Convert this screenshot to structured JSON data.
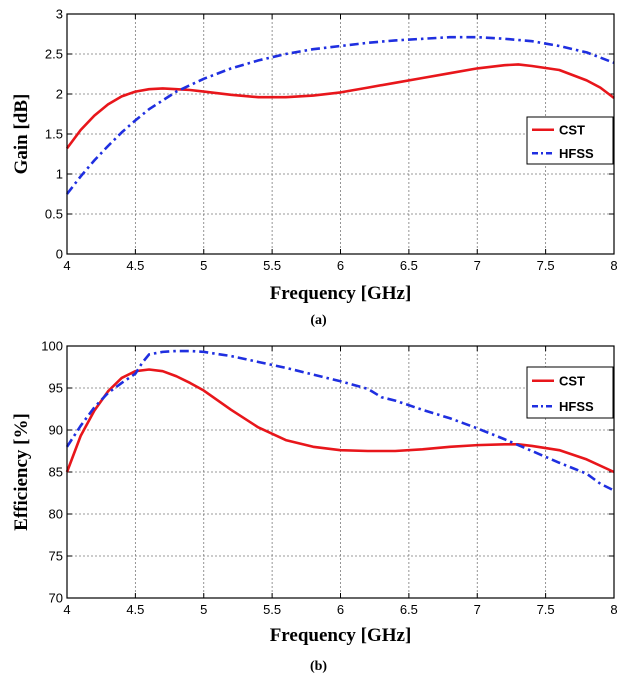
{
  "chart_data": [
    {
      "type": "line",
      "caption": "(a)",
      "xlabel": "Frequency [GHz]",
      "ylabel": "Gain [dB]",
      "xlim": [
        4,
        8
      ],
      "ylim": [
        0,
        3
      ],
      "xticks": [
        "4",
        "4.5",
        "5",
        "5.5",
        "6",
        "6.5",
        "7",
        "7.5",
        "8"
      ],
      "yticks": [
        "0",
        "0.5",
        "1",
        "1.5",
        "2",
        "2.5",
        "3"
      ],
      "grid": true,
      "legend": "right",
      "series": [
        {
          "name": "CST",
          "color": "#e8161b",
          "style": "solid",
          "x": [
            4.0,
            4.1,
            4.2,
            4.3,
            4.4,
            4.5,
            4.6,
            4.7,
            4.8,
            4.9,
            5.0,
            5.2,
            5.4,
            5.6,
            5.8,
            6.0,
            6.2,
            6.4,
            6.6,
            6.8,
            7.0,
            7.2,
            7.3,
            7.4,
            7.6,
            7.8,
            7.9,
            8.0
          ],
          "y": [
            1.32,
            1.55,
            1.73,
            1.87,
            1.97,
            2.03,
            2.06,
            2.07,
            2.06,
            2.05,
            2.03,
            1.99,
            1.96,
            1.96,
            1.98,
            2.02,
            2.08,
            2.14,
            2.2,
            2.26,
            2.32,
            2.36,
            2.37,
            2.35,
            2.3,
            2.17,
            2.08,
            1.95
          ]
        },
        {
          "name": "HFSS",
          "color": "#1f2fe0",
          "style": "dashdot",
          "x": [
            4.0,
            4.1,
            4.2,
            4.3,
            4.4,
            4.5,
            4.6,
            4.8,
            5.0,
            5.2,
            5.4,
            5.6,
            5.8,
            6.0,
            6.2,
            6.4,
            6.6,
            6.8,
            6.9,
            7.0,
            7.2,
            7.4,
            7.6,
            7.8,
            8.0
          ],
          "y": [
            0.75,
            0.97,
            1.17,
            1.35,
            1.52,
            1.67,
            1.81,
            2.03,
            2.19,
            2.32,
            2.42,
            2.5,
            2.56,
            2.6,
            2.64,
            2.67,
            2.69,
            2.71,
            2.71,
            2.71,
            2.69,
            2.66,
            2.6,
            2.52,
            2.39
          ]
        }
      ]
    },
    {
      "type": "line",
      "caption": "(b)",
      "xlabel": "Frequency [GHz]",
      "ylabel": "Efficiency [%]",
      "xlim": [
        4,
        8
      ],
      "ylim": [
        70,
        100
      ],
      "xticks": [
        "4",
        "4.5",
        "5",
        "5.5",
        "6",
        "6.5",
        "7",
        "7.5",
        "8"
      ],
      "yticks": [
        "70",
        "75",
        "80",
        "85",
        "90",
        "95",
        "100"
      ],
      "grid": true,
      "legend": "top-right",
      "series": [
        {
          "name": "CST",
          "color": "#e8161b",
          "style": "solid",
          "x": [
            4.0,
            4.1,
            4.2,
            4.3,
            4.4,
            4.5,
            4.6,
            4.7,
            4.8,
            4.9,
            5.0,
            5.2,
            5.4,
            5.6,
            5.8,
            6.0,
            6.2,
            6.4,
            6.6,
            6.8,
            7.0,
            7.2,
            7.3,
            7.4,
            7.6,
            7.8,
            8.0
          ],
          "y": [
            85.0,
            89.3,
            92.3,
            94.6,
            96.2,
            97.0,
            97.2,
            97.0,
            96.4,
            95.6,
            94.7,
            92.4,
            90.3,
            88.8,
            88.0,
            87.6,
            87.5,
            87.5,
            87.7,
            88.0,
            88.2,
            88.3,
            88.3,
            88.1,
            87.6,
            86.5,
            85.0
          ]
        },
        {
          "name": "HFSS",
          "color": "#1f2fe0",
          "style": "dashdot",
          "x": [
            4.0,
            4.1,
            4.2,
            4.3,
            4.4,
            4.5,
            4.55,
            4.6,
            4.7,
            4.8,
            4.9,
            5.0,
            5.2,
            5.4,
            5.6,
            5.8,
            6.0,
            6.2,
            6.3,
            6.4,
            6.6,
            6.8,
            7.0,
            7.2,
            7.4,
            7.6,
            7.8,
            7.9,
            8.0
          ],
          "y": [
            88.0,
            90.5,
            92.7,
            94.4,
            95.6,
            96.7,
            98.0,
            99.0,
            99.3,
            99.4,
            99.4,
            99.3,
            98.8,
            98.1,
            97.4,
            96.6,
            95.8,
            94.9,
            93.9,
            93.5,
            92.4,
            91.4,
            90.2,
            88.9,
            87.5,
            86.1,
            84.8,
            83.6,
            82.8
          ]
        }
      ]
    }
  ]
}
